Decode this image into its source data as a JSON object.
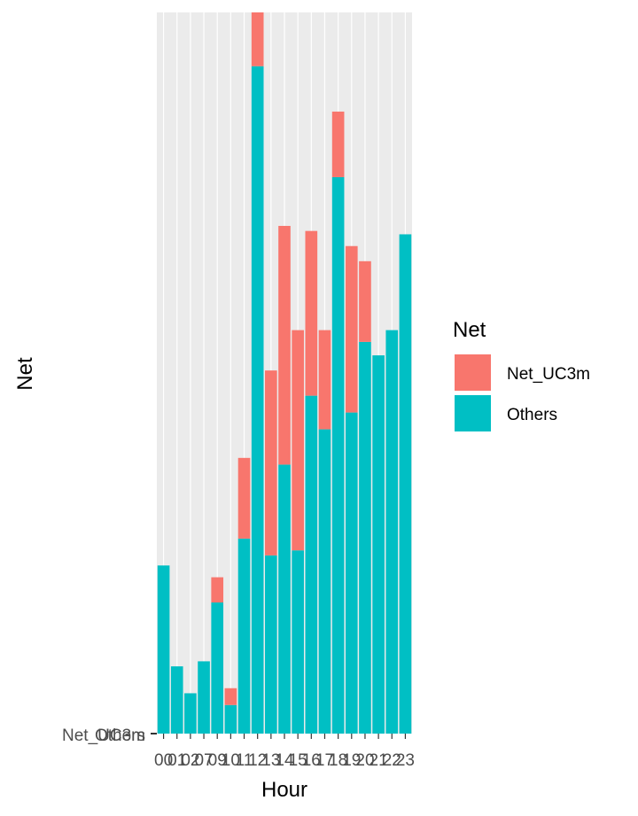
{
  "chart_data": {
    "type": "bar",
    "stacked": true,
    "xlabel": "Hour",
    "ylabel": "Net",
    "categories": [
      "00",
      "01",
      "02",
      "07",
      "09",
      "10",
      "11",
      "12",
      "13",
      "14",
      "15",
      "16",
      "17",
      "18",
      "19",
      "20",
      "21",
      "22",
      "23"
    ],
    "y_tick_labels": [
      "Net_UC3m",
      "Others"
    ],
    "series": [
      {
        "name": "Others",
        "color": "#00BFC4",
        "values": [
          10,
          4,
          2.4,
          4.3,
          7.8,
          1.7,
          11.6,
          39.7,
          10.6,
          16.0,
          10.9,
          20.1,
          18.1,
          33.1,
          19.1,
          23.3,
          22.5,
          24.0,
          29.7
        ]
      },
      {
        "name": "Net_UC3m",
        "color": "#F8766D",
        "values": [
          0,
          0,
          0,
          0,
          1.5,
          1.0,
          4.8,
          3.2,
          11.0,
          14.2,
          13.1,
          9.8,
          5.9,
          3.9,
          9.9,
          4.8,
          0,
          0,
          0
        ]
      }
    ],
    "grid": true,
    "legend": {
      "title": "Net",
      "position": "right",
      "entries": [
        "Net_UC3m",
        "Others"
      ]
    }
  }
}
